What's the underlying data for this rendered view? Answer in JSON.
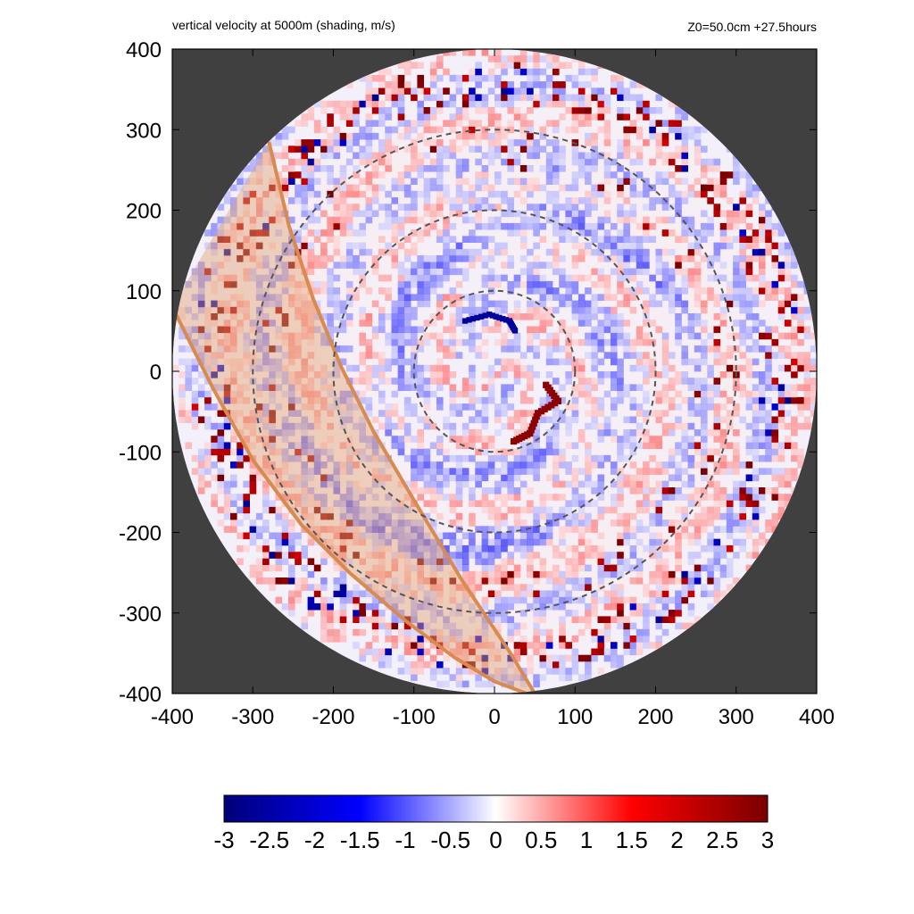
{
  "chart_data": {
    "type": "heatmap",
    "title": "vertical velocity at 5000m (shading, m/s)",
    "subtitle": "Z0=50.0cm  +27.5hours",
    "xlim": [
      -400,
      400
    ],
    "ylim": [
      -400,
      400
    ],
    "x_ticks": [
      -400,
      -300,
      -200,
      -100,
      0,
      100,
      200,
      300,
      400
    ],
    "y_ticks": [
      400,
      300,
      200,
      100,
      0,
      -100,
      -200,
      -300,
      -400
    ],
    "domain_radius": 400,
    "dashed_circle_radii": [
      100,
      200,
      300
    ],
    "colorbar": {
      "min": -3,
      "max": 3,
      "ticks": [
        "-3",
        "-2.5",
        "-2",
        "-1.5",
        "-1",
        "-0.5",
        "0",
        "0.5",
        "1",
        "1.5",
        "2",
        "2.5",
        "3"
      ],
      "colors": [
        "#00007a",
        "#0000ff",
        "#ffffff",
        "#ff0000",
        "#7a0000"
      ]
    },
    "colors": {
      "outside_domain": "#404040",
      "sector_fill": "#e3a476",
      "sector_edge": "#d98a4e",
      "circle_dash": "#555555"
    },
    "sector_band": {
      "outer_edge": [
        [
          -400,
          80
        ],
        [
          -350,
          -20
        ],
        [
          -300,
          -110
        ],
        [
          -240,
          -190
        ],
        [
          -180,
          -250
        ],
        [
          -110,
          -310
        ],
        [
          -50,
          -355
        ],
        [
          0,
          -385
        ],
        [
          40,
          -400
        ]
      ],
      "inner_edge": [
        [
          -280,
          285
        ],
        [
          -255,
          180
        ],
        [
          -225,
          90
        ],
        [
          -190,
          5
        ],
        [
          -150,
          -75
        ],
        [
          -100,
          -160
        ],
        [
          -40,
          -260
        ],
        [
          20,
          -350
        ],
        [
          50,
          -400
        ]
      ]
    },
    "features": {
      "negative_arc": [
        [
          -40,
          60
        ],
        [
          -10,
          68
        ],
        [
          15,
          60
        ],
        [
          22,
          48
        ]
      ],
      "positive_core": [
        [
          60,
          -20
        ],
        [
          75,
          -40
        ],
        [
          50,
          -55
        ],
        [
          40,
          -80
        ],
        [
          20,
          -90
        ]
      ],
      "rainband_ring_radius": [
        330,
        380
      ]
    }
  }
}
